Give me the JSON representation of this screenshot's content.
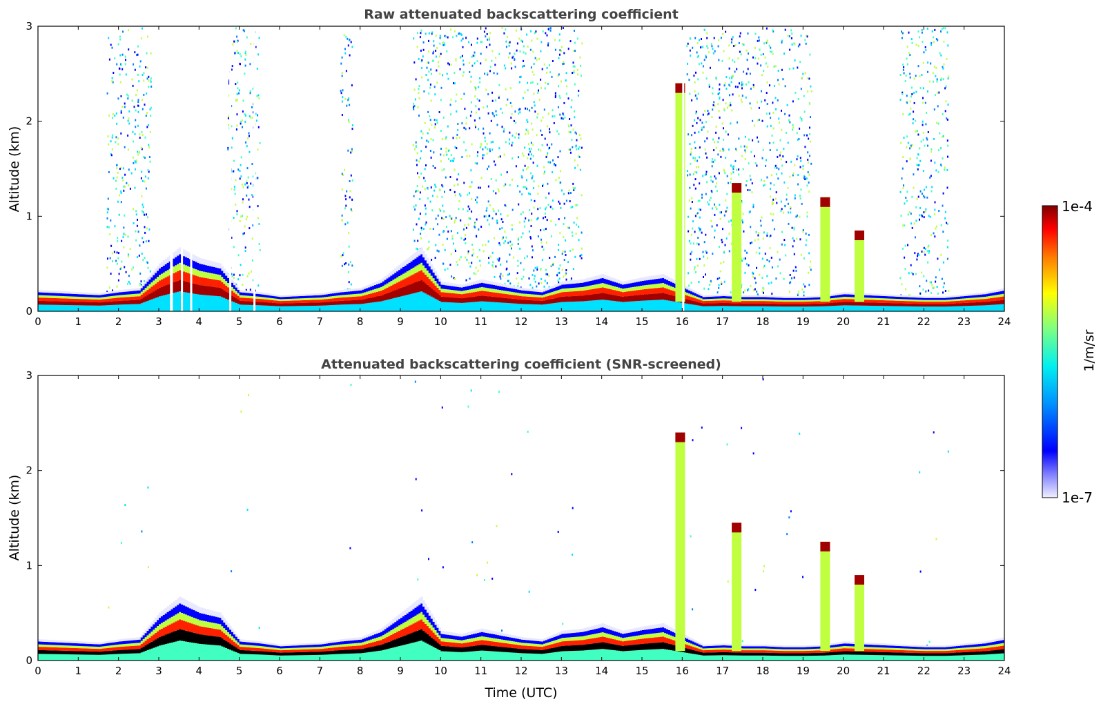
{
  "chart_data": [
    {
      "type": "heatmap",
      "title": "Raw attenuated backscattering coefficient",
      "xlabel": "",
      "ylabel": "Altitude (km)",
      "xlim": [
        0,
        24
      ],
      "ylim": [
        0,
        3
      ],
      "x_ticks": [
        "0",
        "1",
        "2",
        "3",
        "4",
        "5",
        "6",
        "7",
        "8",
        "9",
        "10",
        "11",
        "12",
        "13",
        "14",
        "15",
        "16",
        "17",
        "18",
        "19",
        "20",
        "21",
        "22",
        "23",
        "24"
      ],
      "y_ticks": [
        "0",
        "1",
        "2",
        "3"
      ],
      "data_gaps_hours": [
        [
          3.28,
          3.35
        ],
        [
          3.55,
          3.6
        ],
        [
          3.78,
          3.83
        ],
        [
          4.75,
          4.8
        ],
        [
          5.35,
          5.4
        ],
        [
          16.0,
          16.05
        ]
      ],
      "layers": [
        {
          "name": "boundary-layer",
          "time_h": [
            0,
            1,
            1.5,
            2,
            2.5,
            3,
            3.5,
            4,
            4.5,
            5,
            5.5,
            6,
            6.5,
            7,
            7.5,
            8,
            8.5,
            9,
            9.5,
            10,
            10.5,
            11,
            11.5,
            12,
            12.5,
            13,
            13.5,
            14,
            14.5,
            15,
            15.5,
            16,
            16.5,
            17,
            17.5,
            18,
            18.5,
            19,
            19.5,
            20,
            20.5,
            21,
            21.5,
            22,
            22.5,
            23,
            23.5,
            24
          ],
          "top_km": [
            0.2,
            0.18,
            0.17,
            0.2,
            0.22,
            0.45,
            0.6,
            0.5,
            0.45,
            0.2,
            0.18,
            0.15,
            0.16,
            0.17,
            0.2,
            0.22,
            0.3,
            0.45,
            0.6,
            0.28,
            0.25,
            0.3,
            0.26,
            0.22,
            0.2,
            0.28,
            0.3,
            0.35,
            0.28,
            0.32,
            0.35,
            0.25,
            0.15,
            0.16,
            0.15,
            0.15,
            0.14,
            0.14,
            0.15,
            0.18,
            0.17,
            0.16,
            0.15,
            0.14,
            0.14,
            0.16,
            0.18,
            0.22
          ]
        },
        {
          "name": "noisy-aerosol-above-BL",
          "time_ranges_h": [
            [
              1.7,
              2.8
            ],
            [
              4.7,
              5.5
            ],
            [
              7.5,
              7.8
            ],
            [
              9.3,
              13.5
            ],
            [
              16.1,
              19.2
            ],
            [
              21.4,
              22.6
            ]
          ],
          "max_km": 3.0
        },
        {
          "name": "cloud-tower",
          "time_h": 15.95,
          "top_km": 2.4
        },
        {
          "name": "plume",
          "time_h": 17.35,
          "top_km": 1.35
        },
        {
          "name": "plume",
          "time_h": 19.55,
          "top_km": 1.2
        },
        {
          "name": "plume",
          "time_h": 20.4,
          "top_km": 0.85
        }
      ]
    },
    {
      "type": "heatmap",
      "title": "Attenuated backscattering coefficient (SNR-screened)",
      "xlabel": "Time (UTC)",
      "ylabel": "Altitude (km)",
      "xlim": [
        0,
        24
      ],
      "ylim": [
        0,
        3
      ],
      "x_ticks": [
        "0",
        "1",
        "2",
        "3",
        "4",
        "5",
        "6",
        "7",
        "8",
        "9",
        "10",
        "11",
        "12",
        "13",
        "14",
        "15",
        "16",
        "17",
        "18",
        "19",
        "20",
        "21",
        "22",
        "23",
        "24"
      ],
      "y_ticks": [
        "0",
        "1",
        "2",
        "3"
      ],
      "note_features": "same layers as raw panel, noise removed above boundary layer; saturated core shown black",
      "layers": [
        {
          "name": "boundary-layer",
          "same_as": "panel-1"
        },
        {
          "name": "cloud-tower",
          "time_h": 15.95,
          "top_km": 2.4
        },
        {
          "name": "plume",
          "time_h": 17.35,
          "top_km": 1.45
        },
        {
          "name": "plume",
          "time_h": 19.55,
          "top_km": 1.25
        },
        {
          "name": "plume",
          "time_h": 20.4,
          "top_km": 0.9
        }
      ]
    }
  ],
  "colorbar": {
    "label": "1/m/sr",
    "max_label": "1e-4",
    "min_label": "1e-7",
    "scale": "log",
    "colormap": "jet",
    "range": [
      1e-07,
      0.0001
    ]
  },
  "colors": {
    "ramp": [
      "#e8e8ff",
      "#9090ff",
      "#0000ff",
      "#0080ff",
      "#00e0ff",
      "#40ffc0",
      "#c0ff40",
      "#ffe000",
      "#ff8000",
      "#ff2000",
      "#a00000",
      "#7a0000"
    ],
    "saturated": "#000000"
  }
}
